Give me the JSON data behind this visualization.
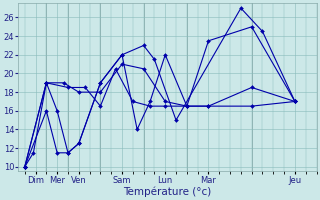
{
  "xlabel": "Température (°c)",
  "background_color": "#cce8e8",
  "line_color": "#0000aa",
  "ylim": [
    9.5,
    27.5
  ],
  "xlim": [
    -0.3,
    13.3
  ],
  "yticks": [
    10,
    12,
    14,
    16,
    18,
    20,
    22,
    24,
    26
  ],
  "day_tick_positions": [
    0.5,
    1.5,
    2.5,
    4.5,
    6.5,
    8.5,
    12.5
  ],
  "day_tick_labels": [
    "Dim",
    "Mer",
    "Ven",
    "Sam",
    "Lun",
    "Mar",
    "Jeu"
  ],
  "vline_positions": [
    1.0,
    2.0,
    3.5,
    5.5,
    7.5,
    10.5
  ],
  "series_x": [
    [
      0.0,
      0.4,
      1.0,
      1.5,
      2.0,
      2.5,
      3.5,
      4.5,
      5.5,
      6.0,
      7.0,
      10.0,
      11.0,
      12.5
    ],
    [
      0.0,
      1.0,
      1.5,
      2.0,
      2.5,
      3.5,
      4.5,
      5.2,
      5.8,
      6.5,
      7.5,
      8.5,
      10.5,
      12.5
    ],
    [
      0.0,
      1.0,
      2.0,
      2.8,
      3.5,
      4.2,
      5.0,
      5.8,
      6.5,
      7.5,
      8.5,
      10.5,
      12.5
    ],
    [
      0.0,
      1.0,
      1.8,
      2.5,
      3.5,
      4.5,
      5.5,
      6.5,
      7.5,
      8.5,
      10.5,
      12.5
    ]
  ],
  "series_y": [
    [
      10.0,
      11.5,
      19.0,
      16.0,
      11.5,
      12.5,
      19.0,
      22.0,
      23.0,
      21.5,
      15.0,
      27.0,
      24.5,
      17.0
    ],
    [
      10.0,
      16.0,
      11.5,
      11.5,
      12.5,
      19.0,
      22.0,
      14.0,
      17.0,
      22.0,
      16.5,
      16.5,
      18.5,
      17.0
    ],
    [
      10.0,
      19.0,
      18.5,
      18.5,
      16.5,
      20.5,
      17.0,
      16.5,
      16.5,
      16.5,
      16.5,
      16.5,
      17.0
    ],
    [
      10.0,
      19.0,
      19.0,
      18.0,
      18.0,
      21.0,
      20.5,
      17.0,
      16.5,
      23.5,
      25.0,
      17.0
    ]
  ]
}
